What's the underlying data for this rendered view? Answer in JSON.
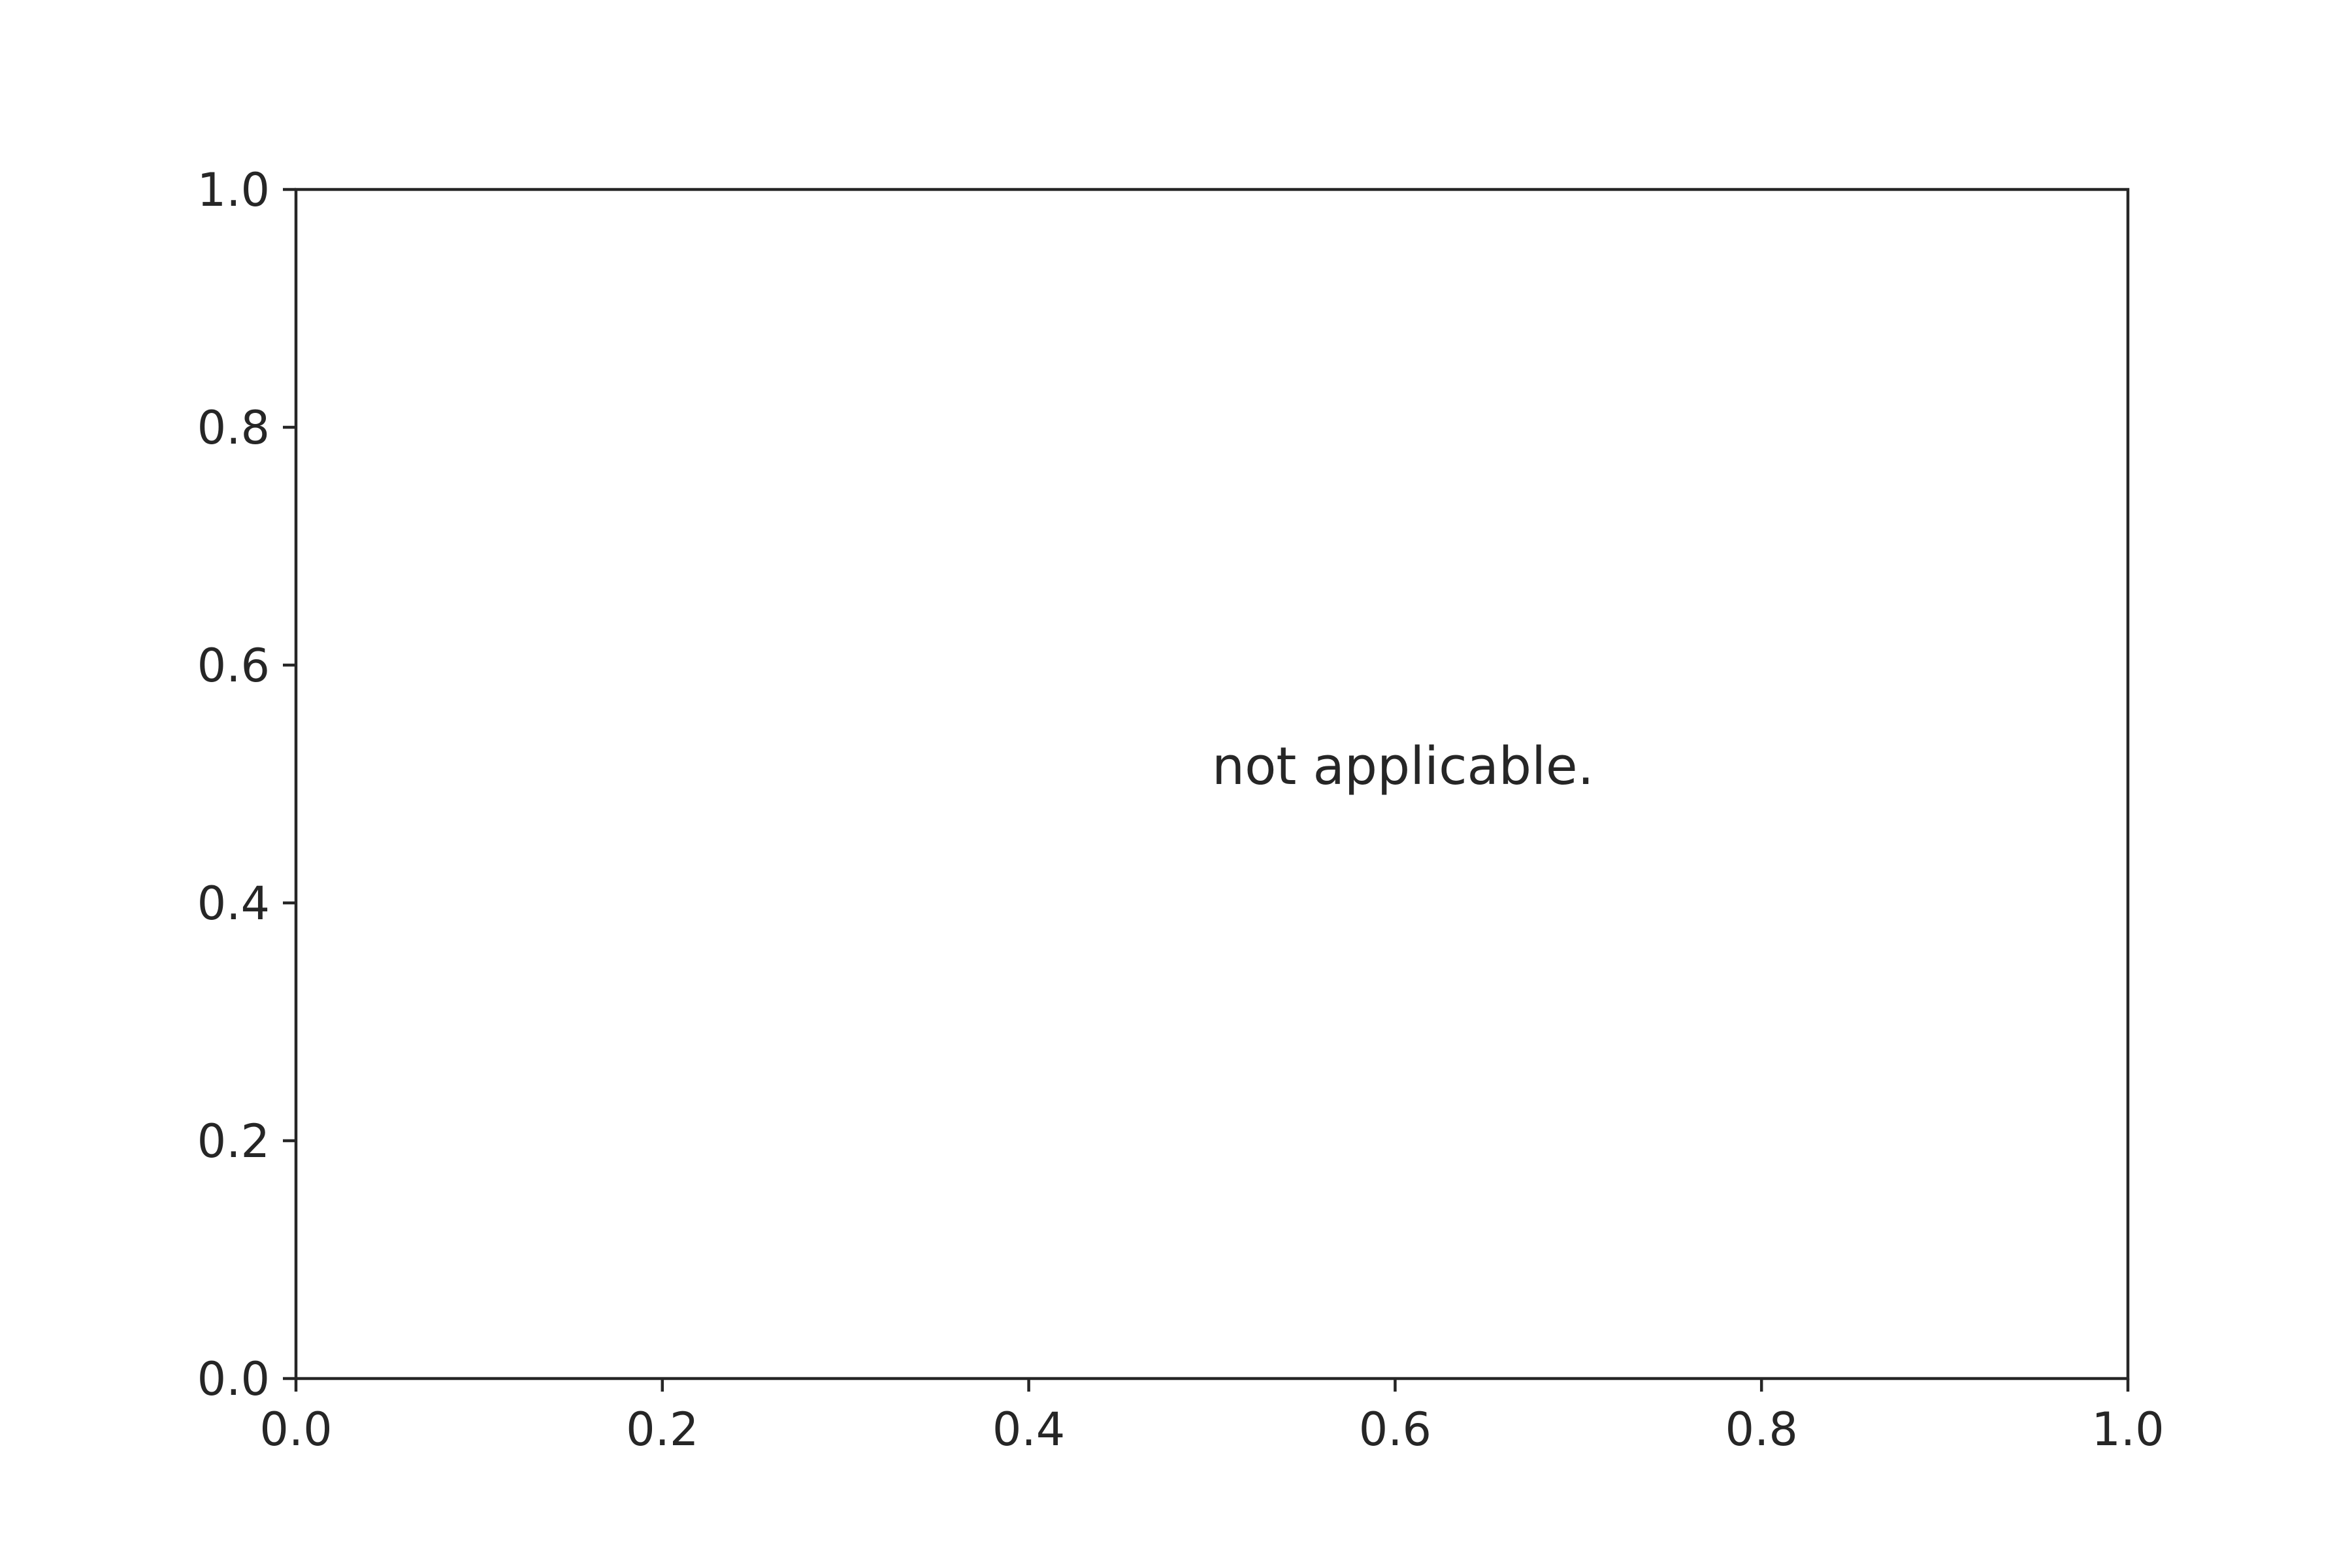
{
  "chart_data": {
    "type": "scatter",
    "title": "",
    "xlabel": "",
    "ylabel": "",
    "xlim": [
      0.0,
      1.0
    ],
    "ylim": [
      0.0,
      1.0
    ],
    "xticks": [
      "0.0",
      "0.2",
      "0.4",
      "0.6",
      "0.8",
      "1.0"
    ],
    "yticks": [
      "0.0",
      "0.2",
      "0.4",
      "0.6",
      "0.8",
      "1.0"
    ],
    "grid": false,
    "series": [],
    "annotations": [
      {
        "text": "not applicable.",
        "x": 0.5,
        "y": 0.5
      }
    ]
  }
}
